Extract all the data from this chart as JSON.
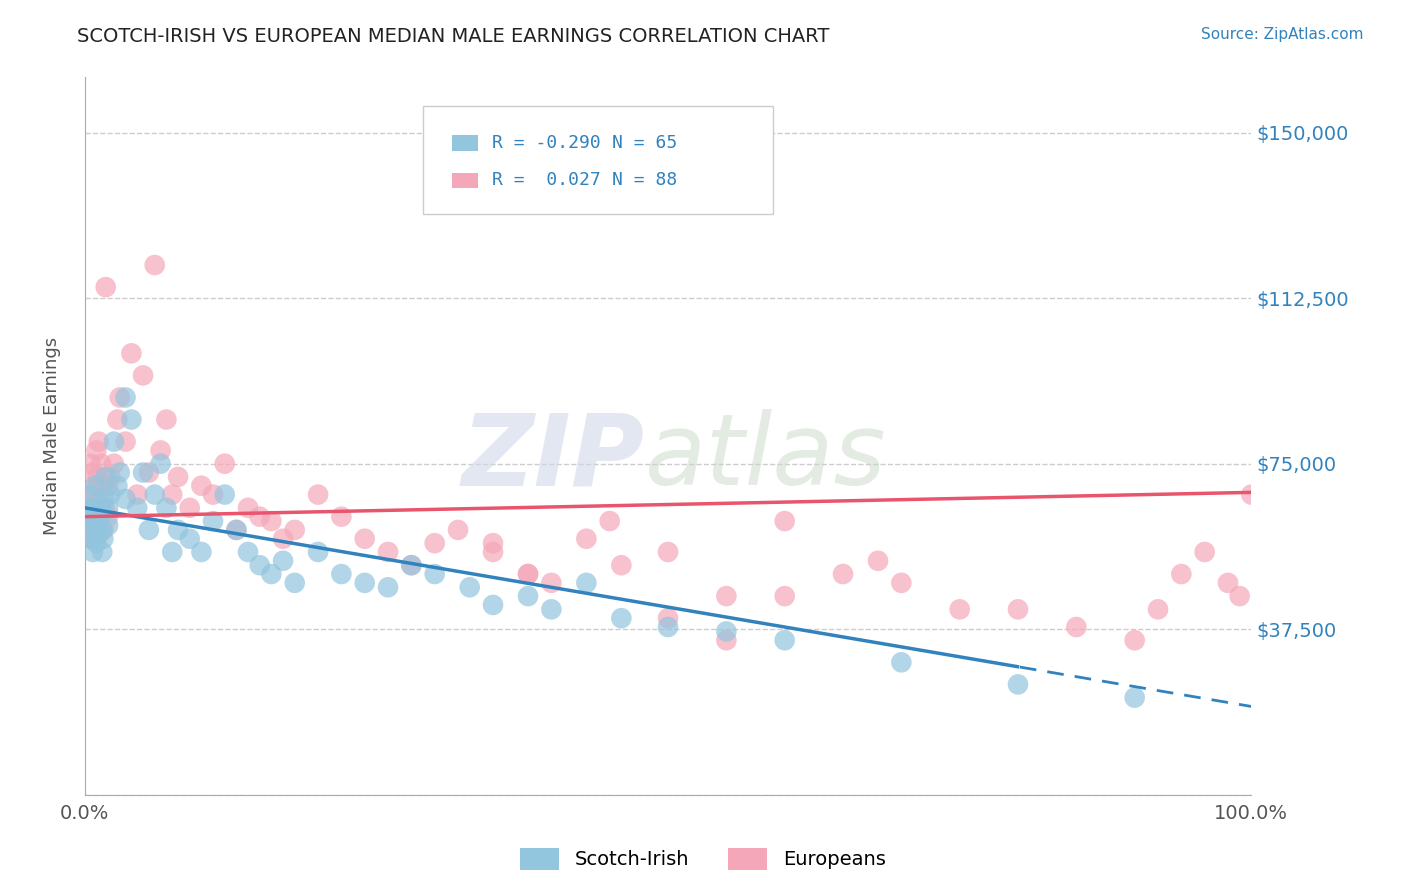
{
  "title": "SCOTCH-IRISH VS EUROPEAN MEDIAN MALE EARNINGS CORRELATION CHART",
  "source": "Source: ZipAtlas.com",
  "ylabel": "Median Male Earnings",
  "xlim": [
    0.0,
    100.0
  ],
  "ylim": [
    0,
    162500
  ],
  "yticks": [
    0,
    37500,
    75000,
    112500,
    150000
  ],
  "ytick_labels": [
    "",
    "$37,500",
    "$75,000",
    "$112,500",
    "$150,000"
  ],
  "xticks": [
    0.0,
    100.0
  ],
  "xtick_labels": [
    "0.0%",
    "100.0%"
  ],
  "legend_label1": "Scotch-Irish",
  "legend_label2": "Europeans",
  "color_blue": "#92c5de",
  "color_pink": "#f4a7b9",
  "color_blue_line": "#3182bd",
  "color_pink_line": "#e8556d",
  "color_blue_text": "#3182bd",
  "si_intercept": 65000,
  "si_slope": -450,
  "eu_intercept": 63000,
  "eu_slope": 55,
  "si_solid_end": 80,
  "si_dash_end": 100,
  "scotch_irish_x": [
    0.2,
    0.3,
    0.4,
    0.5,
    0.5,
    0.6,
    0.7,
    0.8,
    0.9,
    1.0,
    1.0,
    1.1,
    1.2,
    1.3,
    1.4,
    1.5,
    1.5,
    1.6,
    1.7,
    1.8,
    2.0,
    2.0,
    2.2,
    2.5,
    2.8,
    3.0,
    3.5,
    3.5,
    4.0,
    4.5,
    5.0,
    5.5,
    6.0,
    6.5,
    7.0,
    7.5,
    8.0,
    9.0,
    10.0,
    11.0,
    12.0,
    13.0,
    14.0,
    15.0,
    16.0,
    17.0,
    18.0,
    20.0,
    22.0,
    24.0,
    26.0,
    28.0,
    30.0,
    33.0,
    35.0,
    38.0,
    40.0,
    43.0,
    46.0,
    50.0,
    55.0,
    60.0,
    70.0,
    80.0,
    90.0
  ],
  "scotch_irish_y": [
    65000,
    63000,
    62000,
    60000,
    68000,
    58000,
    55000,
    65000,
    70000,
    62000,
    57000,
    64000,
    59000,
    63000,
    65000,
    60000,
    55000,
    58000,
    67000,
    72000,
    61000,
    65000,
    68000,
    80000,
    70000,
    73000,
    67000,
    90000,
    85000,
    65000,
    73000,
    60000,
    68000,
    75000,
    65000,
    55000,
    60000,
    58000,
    55000,
    62000,
    68000,
    60000,
    55000,
    52000,
    50000,
    53000,
    48000,
    55000,
    50000,
    48000,
    47000,
    52000,
    50000,
    47000,
    43000,
    45000,
    42000,
    48000,
    40000,
    38000,
    37000,
    35000,
    30000,
    25000,
    22000
  ],
  "europeans_x": [
    0.2,
    0.3,
    0.5,
    0.5,
    0.6,
    0.7,
    0.8,
    0.9,
    1.0,
    1.0,
    1.1,
    1.2,
    1.3,
    1.4,
    1.5,
    1.6,
    1.7,
    1.8,
    2.0,
    2.0,
    2.2,
    2.5,
    2.8,
    3.0,
    3.5,
    4.0,
    4.5,
    5.0,
    5.5,
    6.0,
    6.5,
    7.0,
    7.5,
    8.0,
    9.0,
    10.0,
    11.0,
    12.0,
    13.0,
    14.0,
    15.0,
    16.0,
    17.0,
    18.0,
    20.0,
    22.0,
    24.0,
    26.0,
    28.0,
    30.0,
    32.0,
    35.0,
    38.0,
    40.0,
    43.0,
    46.0,
    50.0,
    55.0,
    60.0,
    65.0,
    68.0,
    70.0,
    75.0,
    80.0,
    85.0,
    90.0,
    92.0,
    94.0,
    96.0,
    98.0,
    99.0,
    100.0,
    45.0,
    50.0,
    55.0,
    60.0,
    35.0,
    38.0
  ],
  "europeans_y": [
    68000,
    62000,
    75000,
    60000,
    58000,
    73000,
    65000,
    70000,
    68000,
    78000,
    72000,
    80000,
    65000,
    75000,
    70000,
    60000,
    65000,
    115000,
    70000,
    63000,
    72000,
    75000,
    85000,
    90000,
    80000,
    100000,
    68000,
    95000,
    73000,
    120000,
    78000,
    85000,
    68000,
    72000,
    65000,
    70000,
    68000,
    75000,
    60000,
    65000,
    63000,
    62000,
    58000,
    60000,
    68000,
    63000,
    58000,
    55000,
    52000,
    57000,
    60000,
    55000,
    50000,
    48000,
    58000,
    52000,
    55000,
    45000,
    62000,
    50000,
    53000,
    48000,
    42000,
    42000,
    38000,
    35000,
    42000,
    50000,
    55000,
    48000,
    45000,
    68000,
    62000,
    40000,
    35000,
    45000,
    57000,
    50000
  ]
}
